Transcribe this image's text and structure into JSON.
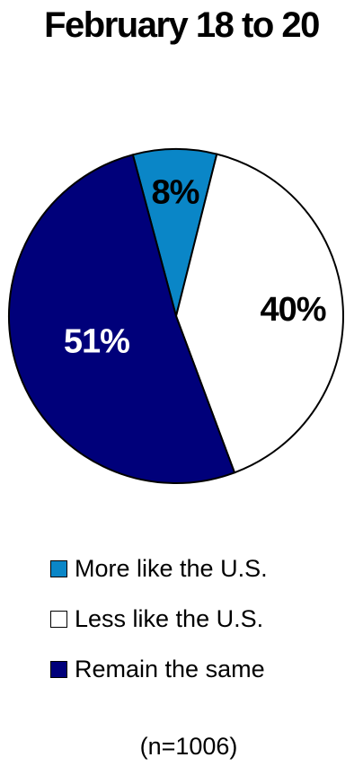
{
  "chart_data": {
    "type": "pie",
    "title": "February 18 to 20",
    "slices": [
      {
        "label": "More like the U.S.",
        "value": 8,
        "display": "8%",
        "color": "#0A86C7",
        "label_color": "#000000"
      },
      {
        "label": "Less like the U.S.",
        "value": 40,
        "display": "40%",
        "color": "#FFFFFF",
        "label_color": "#000000"
      },
      {
        "label": "Remain the same",
        "value": 51,
        "display": "51%",
        "color": "#00007A",
        "label_color": "#FFFFFF"
      }
    ],
    "legend_position": "bottom",
    "note": "(n=1006)"
  }
}
